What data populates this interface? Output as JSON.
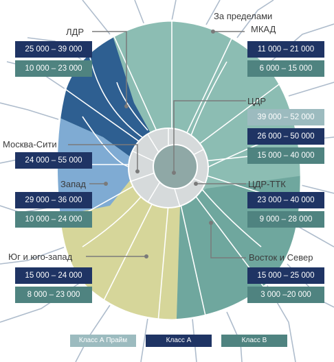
{
  "colors": {
    "outer_zone": "#8cbdb3",
    "east_zone": "#6fa79e",
    "ldr_zone": "#2e5f91",
    "west_zone": "#7fabd3",
    "south_zone": "#d6d69a",
    "center": "#8fa8a6",
    "ttk_ring": "#d6dadb",
    "roads": "#aebccc",
    "class_a_prime": "#9cbbbf",
    "class_a": "#1f3464",
    "class_b": "#4f8380",
    "pointer": "#7a7a7a"
  },
  "zones": {
    "ldr": {
      "label": "ЛДР",
      "class_a": "25 000 – 39 000",
      "class_b": "10 000 – 23 000"
    },
    "outside_mkad": {
      "label_line1": "За пределами",
      "label_line2": "МКАД",
      "class_a": "11 000 – 21 000",
      "class_b": "6 000 – 15 000"
    },
    "cdr": {
      "label": "ЦДР",
      "class_a_prime": "39 000 – 52 000",
      "class_a": "26 000 – 50 000",
      "class_b": "15 000 – 40 000"
    },
    "moscow_city": {
      "label": "Москва-Сити",
      "class_a": "24 000 – 55 000"
    },
    "west": {
      "label": "Запад",
      "class_a": "29 000 – 36 000",
      "class_b": "10 000 – 24 000"
    },
    "cdr_ttk": {
      "label": "ЦДР-ТТК",
      "class_a": "23 000 – 40 000",
      "class_b": "9 000 – 28 000"
    },
    "south_southwest": {
      "label": "Юг и юго-запад",
      "class_a": "15 000 – 24 000",
      "class_b": "8 000 – 23 000"
    },
    "east_north": {
      "label": "Восток и Север",
      "class_a": "15 000 – 25 000",
      "class_b": "3 000 –20 000"
    }
  },
  "legend": {
    "class_a_prime": "Класс А Прайм",
    "class_a": "Класс А",
    "class_b": "Класс В"
  }
}
